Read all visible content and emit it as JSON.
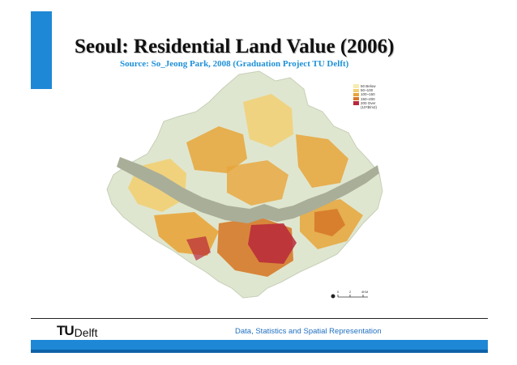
{
  "slide": {
    "title": "Seoul: Residential Land Value (2006)",
    "source": "Source: So_Jeong Park, 2008 (Graduation Project TU Delft)",
    "footer_text": "Data, Statistics and Spatial Representation"
  },
  "logo": {
    "part1": "TU",
    "part2": "Delft"
  },
  "legend": {
    "items": [
      {
        "label": "50 Below",
        "color": "#f7ecae"
      },
      {
        "label": "50~100",
        "color": "#f2cf73"
      },
      {
        "label": "100~150",
        "color": "#e8a53a"
      },
      {
        "label": "150~200",
        "color": "#d67a2a"
      },
      {
        "label": "200 Over",
        "color": "#b8283a"
      }
    ],
    "unit": "(10⁴$/m2)"
  },
  "scale": {
    "labels": [
      "0",
      "2",
      "4KM"
    ]
  },
  "colors": {
    "accent": "#1e88d6",
    "river": "#a9ae99",
    "boundary": "#d7dec6"
  }
}
